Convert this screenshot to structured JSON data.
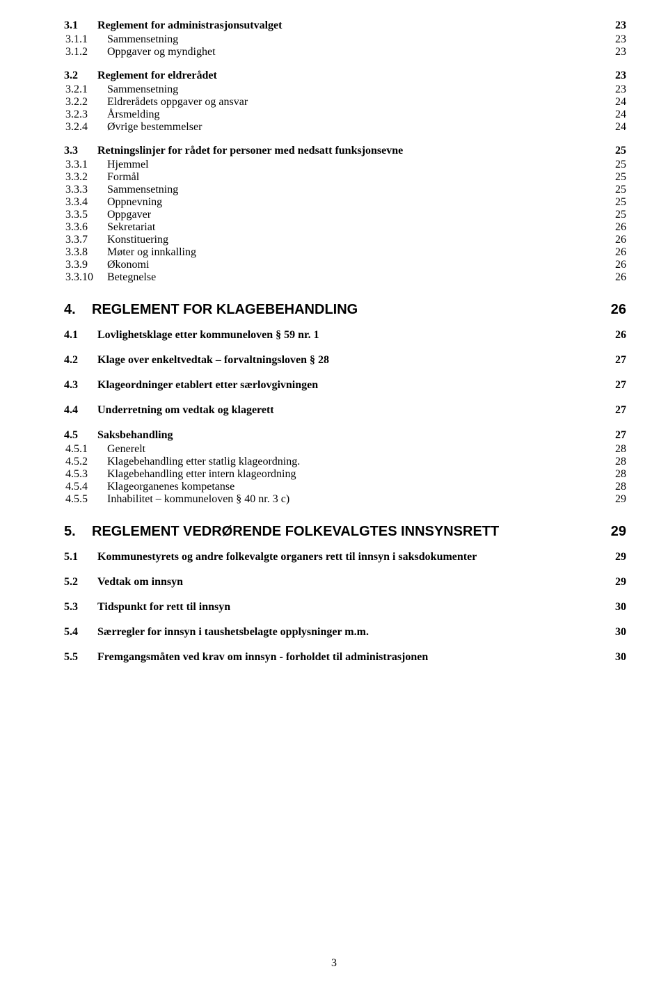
{
  "page_number": "3",
  "sections": {
    "s3_1": {
      "num": "3.1",
      "title": "Reglement for administrasjonsutvalget",
      "page": "23",
      "items": [
        {
          "num": "3.1.1",
          "title": "Sammensetning",
          "page": "23"
        },
        {
          "num": "3.1.2",
          "title": "Oppgaver og myndighet",
          "page": "23"
        }
      ]
    },
    "s3_2": {
      "num": "3.2",
      "title": "Reglement for eldrerådet",
      "page": "23",
      "items": [
        {
          "num": "3.2.1",
          "title": "Sammensetning",
          "page": "23"
        },
        {
          "num": "3.2.2",
          "title": "Eldrerådets oppgaver og ansvar",
          "page": "24"
        },
        {
          "num": "3.2.3",
          "title": "Årsmelding",
          "page": "24"
        },
        {
          "num": "3.2.4",
          "title": "Øvrige bestemmelser",
          "page": "24"
        }
      ]
    },
    "s3_3": {
      "num": "3.3",
      "title": "Retningslinjer for rådet for personer med nedsatt funksjonsevne",
      "page": "25",
      "items": [
        {
          "num": "3.3.1",
          "title": "Hjemmel",
          "page": "25"
        },
        {
          "num": "3.3.2",
          "title": "Formål",
          "page": "25"
        },
        {
          "num": "3.3.3",
          "title": "Sammensetning",
          "page": "25"
        },
        {
          "num": "3.3.4",
          "title": "Oppnevning",
          "page": "25"
        },
        {
          "num": "3.3.5",
          "title": "Oppgaver",
          "page": "25"
        },
        {
          "num": "3.3.6",
          "title": "Sekretariat",
          "page": "26"
        },
        {
          "num": "3.3.7",
          "title": "Konstituering",
          "page": "26"
        },
        {
          "num": "3.3.8",
          "title": "Møter og innkalling",
          "page": "26"
        },
        {
          "num": "3.3.9",
          "title": "Økonomi",
          "page": "26"
        },
        {
          "num": "3.3.10",
          "title": "Betegnelse",
          "page": "26"
        }
      ]
    },
    "s4": {
      "num": "4.",
      "title": "REGLEMENT FOR KLAGEBEHANDLING",
      "page": "26"
    },
    "s4_1": {
      "num": "4.1",
      "title": "Lovlighetsklage etter kommuneloven § 59 nr. 1",
      "page": "26",
      "items": []
    },
    "s4_2": {
      "num": "4.2",
      "title": "Klage over enkeltvedtak – forvaltningsloven § 28",
      "page": "27",
      "items": []
    },
    "s4_3": {
      "num": "4.3",
      "title": "Klageordninger etablert etter særlovgivningen",
      "page": "27",
      "items": []
    },
    "s4_4": {
      "num": "4.4",
      "title": "Underretning om vedtak og klagerett",
      "page": "27",
      "items": []
    },
    "s4_5": {
      "num": "4.5",
      "title": "Saksbehandling",
      "page": "27",
      "items": [
        {
          "num": "4.5.1",
          "title": "Generelt",
          "page": "28"
        },
        {
          "num": "4.5.2",
          "title": "Klagebehandling etter statlig klageordning.",
          "page": "28"
        },
        {
          "num": "4.5.3",
          "title": "Klagebehandling etter intern klageordning",
          "page": "28"
        },
        {
          "num": "4.5.4",
          "title": "Klageorganenes kompetanse",
          "page": "28"
        },
        {
          "num": "4.5.5",
          "title": "Inhabilitet – kommuneloven § 40 nr. 3 c)",
          "page": "29"
        }
      ]
    },
    "s5": {
      "num": "5.",
      "title": "REGLEMENT VEDRØRENDE FOLKEVALGTES INNSYNSRETT",
      "page": "29"
    },
    "s5_1": {
      "num": "5.1",
      "title": "Kommunestyrets og andre folkevalgte organers rett til innsyn i saksdokumenter",
      "page": "29",
      "items": []
    },
    "s5_2": {
      "num": "5.2",
      "title": "Vedtak om innsyn",
      "page": "29",
      "items": []
    },
    "s5_3": {
      "num": "5.3",
      "title": "Tidspunkt for rett til innsyn",
      "page": "30",
      "items": []
    },
    "s5_4": {
      "num": "5.4",
      "title": "Særregler for innsyn i taushetsbelagte opplysninger m.m.",
      "page": "30",
      "items": []
    },
    "s5_5": {
      "num": "5.5",
      "title": "Fremgangsmåten ved krav om innsyn - forholdet til administrasjonen",
      "page": "30",
      "items": []
    }
  }
}
